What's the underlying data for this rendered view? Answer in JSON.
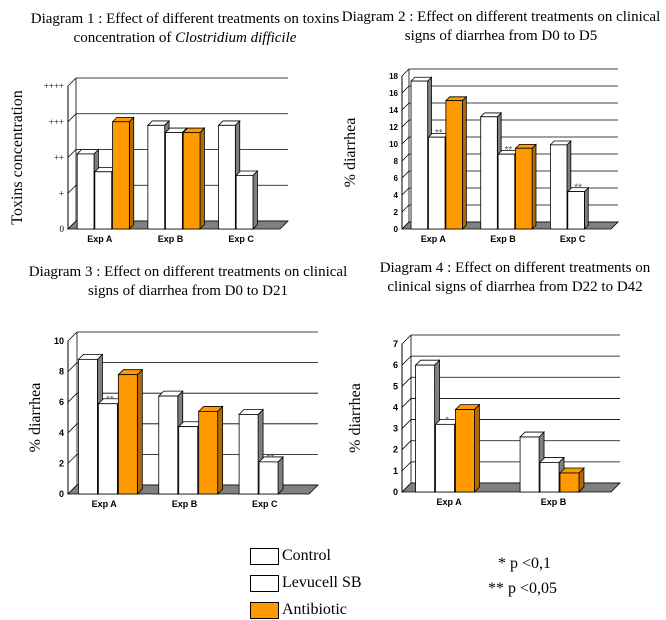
{
  "titles": {
    "d1_prefix": "Diagram 1 : Effect of different treatments on toxins concentration of ",
    "d1_italic": "Clostridium difficile",
    "d2": "Diagram 2 : Effect on different treatments on clinical signs of diarrhea from D0 to D5",
    "d3": "Diagram 3 : Effect on different treatments on clinical signs of diarrhea from D0 to D21",
    "d4": "Diagram 4 : Effect on different treatments on clinical signs of diarrhea from D22 to D42"
  },
  "colors": {
    "control": "#ffffff",
    "levucell": "#ffffff",
    "antibiotic": "#ff9900",
    "antibiotic_side": "#b36b00",
    "outline": "#000000",
    "grey": "#808080"
  },
  "chart_data": [
    {
      "type": "bar",
      "ylabel": "Toxins concentration",
      "categories": [
        "Exp A",
        "Exp B",
        "Exp C"
      ],
      "ylim": [
        0,
        4
      ],
      "yticks": [
        "0",
        "+",
        "++",
        "+++",
        "++++"
      ],
      "series": [
        {
          "name": "Control",
          "values": [
            2.1,
            2.9,
            2.9
          ]
        },
        {
          "name": "Levucell SB",
          "values": [
            1.6,
            2.7,
            1.5
          ]
        },
        {
          "name": "Antibiotic",
          "values": [
            3.0,
            2.7,
            null
          ]
        }
      ],
      "annotations": [
        [],
        [],
        []
      ]
    },
    {
      "type": "bar",
      "ylabel": "% diarrhea",
      "categories": [
        "Exp A",
        "Exp B",
        "Exp C"
      ],
      "ylim": [
        0,
        18
      ],
      "yticks": [
        "0",
        "2",
        "4",
        "6",
        "8",
        "10",
        "12",
        "14",
        "16",
        "18"
      ],
      "series": [
        {
          "name": "Control",
          "values": [
            17.4,
            13.2,
            9.9
          ]
        },
        {
          "name": "Levucell SB",
          "values": [
            10.8,
            8.8,
            4.4
          ]
        },
        {
          "name": "Antibiotic",
          "values": [
            15.1,
            9.5,
            null
          ]
        }
      ],
      "annotations": [
        "**",
        "**",
        "**"
      ]
    },
    {
      "type": "bar",
      "ylabel": "% diarrhea",
      "categories": [
        "Exp A",
        "Exp B",
        "Exp C"
      ],
      "ylim": [
        0,
        10
      ],
      "yticks": [
        "0",
        "2",
        "4",
        "6",
        "8",
        "10"
      ],
      "series": [
        {
          "name": "Control",
          "values": [
            8.8,
            6.4,
            5.2
          ]
        },
        {
          "name": "Levucell SB",
          "values": [
            5.9,
            4.4,
            2.1
          ]
        },
        {
          "name": "Antibiotic",
          "values": [
            7.8,
            5.4,
            null
          ]
        }
      ],
      "annotations": [
        "**",
        "",
        "**"
      ]
    },
    {
      "type": "bar",
      "ylabel": "% diarrhea",
      "categories": [
        "Exp A",
        "Exp B"
      ],
      "ylim": [
        0,
        7
      ],
      "yticks": [
        "0",
        "1",
        "2",
        "3",
        "4",
        "5",
        "6",
        "7"
      ],
      "series": [
        {
          "name": "Control",
          "values": [
            6.0,
            2.6
          ]
        },
        {
          "name": "Levucell SB",
          "values": [
            3.2,
            1.4
          ]
        },
        {
          "name": "Antibiotic",
          "values": [
            3.9,
            0.9
          ]
        }
      ],
      "annotations": [
        "*",
        ""
      ]
    }
  ],
  "legend": {
    "control": "Control",
    "levucell": "Levucell SB",
    "antibiotic": "Antibiotic"
  },
  "significance": {
    "p1_symbol": "*",
    "p1_text": "p <0,1",
    "p2_symbol": "**",
    "p2_text": "p <0,05"
  }
}
